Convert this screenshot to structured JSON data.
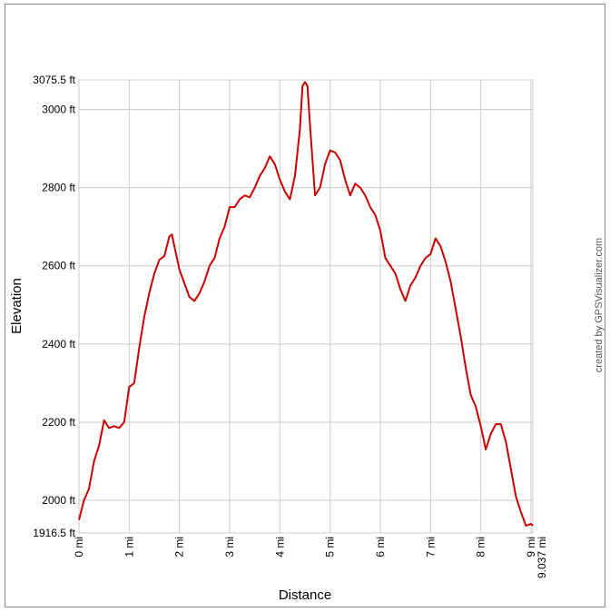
{
  "chart_data": {
    "type": "line",
    "x_label": "Distance",
    "y_label": "Elevation",
    "credit": "created by GPSVisualizer.com",
    "x": [
      0,
      0.1,
      0.2,
      0.3,
      0.4,
      0.5,
      0.6,
      0.7,
      0.8,
      0.9,
      1.0,
      1.1,
      1.2,
      1.3,
      1.4,
      1.5,
      1.6,
      1.7,
      1.8,
      1.85,
      1.9,
      2.0,
      2.1,
      2.2,
      2.3,
      2.4,
      2.5,
      2.6,
      2.7,
      2.8,
      2.9,
      3.0,
      3.1,
      3.2,
      3.3,
      3.4,
      3.5,
      3.6,
      3.7,
      3.8,
      3.9,
      4.0,
      4.1,
      4.2,
      4.3,
      4.4,
      4.45,
      4.5,
      4.55,
      4.6,
      4.7,
      4.8,
      4.9,
      5.0,
      5.1,
      5.2,
      5.3,
      5.4,
      5.5,
      5.6,
      5.7,
      5.8,
      5.9,
      6.0,
      6.1,
      6.2,
      6.3,
      6.4,
      6.5,
      6.6,
      6.7,
      6.8,
      6.9,
      7.0,
      7.1,
      7.2,
      7.3,
      7.4,
      7.5,
      7.6,
      7.7,
      7.8,
      7.9,
      8.0,
      8.1,
      8.2,
      8.3,
      8.4,
      8.5,
      8.6,
      8.7,
      8.8,
      8.9,
      9.0,
      9.037
    ],
    "series": [
      {
        "name": "Elevation",
        "color": "#cc0000",
        "values": [
          1950,
          2000,
          2030,
          2100,
          2140,
          2205,
          2185,
          2190,
          2185,
          2200,
          2290,
          2300,
          2390,
          2470,
          2530,
          2580,
          2615,
          2625,
          2675,
          2680,
          2650,
          2590,
          2555,
          2520,
          2510,
          2530,
          2560,
          2600,
          2620,
          2670,
          2700,
          2750,
          2750,
          2770,
          2780,
          2775,
          2800,
          2830,
          2850,
          2880,
          2860,
          2820,
          2790,
          2770,
          2830,
          2950,
          3060,
          3070,
          3060,
          2960,
          2780,
          2800,
          2860,
          2895,
          2890,
          2870,
          2820,
          2780,
          2810,
          2800,
          2780,
          2750,
          2730,
          2690,
          2620,
          2600,
          2580,
          2540,
          2510,
          2550,
          2570,
          2600,
          2620,
          2630,
          2670,
          2650,
          2610,
          2560,
          2490,
          2420,
          2340,
          2270,
          2240,
          2190,
          2130,
          2170,
          2195,
          2195,
          2150,
          2080,
          2010,
          1970,
          1935,
          1940,
          1935
        ]
      }
    ],
    "xlim": [
      0,
      9.037
    ],
    "xticks": [
      {
        "value": 0,
        "label": "0 mi"
      },
      {
        "value": 1,
        "label": "1 mi"
      },
      {
        "value": 2,
        "label": "2 mi"
      },
      {
        "value": 3,
        "label": "3 mi"
      },
      {
        "value": 4,
        "label": "4 mi"
      },
      {
        "value": 5,
        "label": "5 mi"
      },
      {
        "value": 6,
        "label": "6 mi"
      },
      {
        "value": 7,
        "label": "7 mi"
      },
      {
        "value": 8,
        "label": "8 mi"
      },
      {
        "value": 9,
        "label": "9 mi"
      },
      {
        "value": 9.037,
        "label": "9.037 mi"
      }
    ],
    "ylim": [
      1916.5,
      3075.5
    ],
    "yticks": [
      {
        "value": 1916.5,
        "label": "1916.5 ft"
      },
      {
        "value": 2000,
        "label": "2000 ft"
      },
      {
        "value": 2200,
        "label": "2200 ft"
      },
      {
        "value": 2400,
        "label": "2400 ft"
      },
      {
        "value": 2600,
        "label": "2600 ft"
      },
      {
        "value": 2800,
        "label": "2800 ft"
      },
      {
        "value": 3000,
        "label": "3000 ft"
      },
      {
        "value": 3075.5,
        "label": "3075.5 ft"
      }
    ],
    "grid": true
  }
}
